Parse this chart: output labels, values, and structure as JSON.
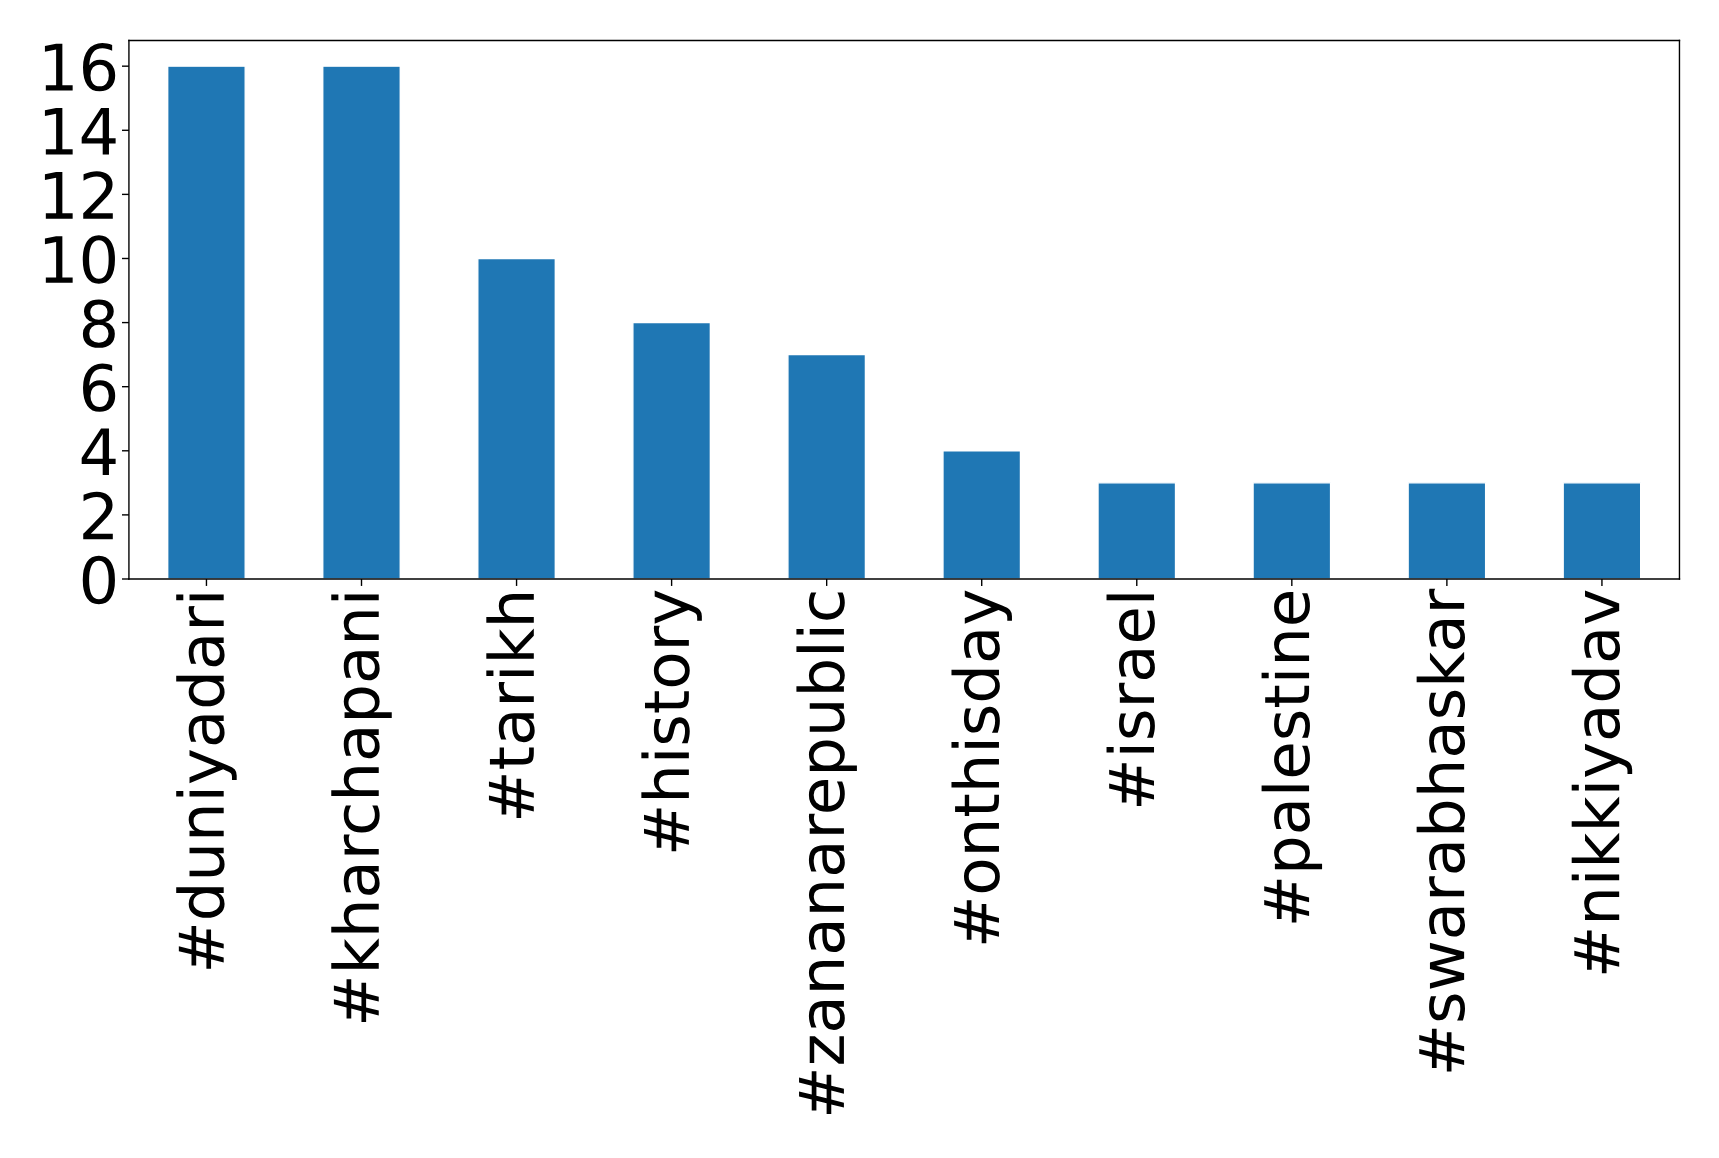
{
  "chart_data": {
    "type": "bar",
    "categories": [
      "#duniyadari",
      "#kharchapani",
      "#tarikh",
      "#history",
      "#zananarepublic",
      "#onthisday",
      "#israel",
      "#palestine",
      "#swarabhaskar",
      "#nikkiyadav"
    ],
    "values": [
      16,
      16,
      10,
      8,
      7,
      4,
      3,
      3,
      3,
      3
    ],
    "color": "#1f77b4",
    "ylim": [
      0,
      16.8
    ],
    "yticks": [
      0,
      2,
      4,
      6,
      8,
      10,
      12,
      14,
      16
    ],
    "grid": false
  }
}
